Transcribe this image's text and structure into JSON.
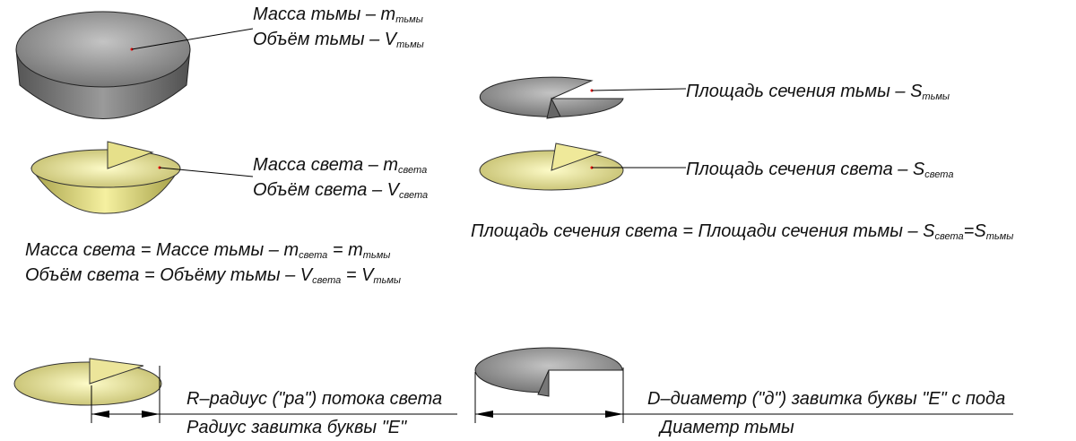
{
  "labels": {
    "dark_mass": [
      {
        "text": "Масса тьмы – m"
      },
      {
        "sub": "тьмы"
      }
    ],
    "dark_volume": [
      {
        "text": "Объём тьмы – V"
      },
      {
        "sub": "тьмы"
      }
    ],
    "light_mass": [
      {
        "text": "Масса света – m"
      },
      {
        "sub": "света"
      }
    ],
    "light_volume": [
      {
        "text": "Объём света – V"
      },
      {
        "sub": "света"
      }
    ],
    "mass_equality": [
      {
        "text": "Масса света = Массе тьмы – m"
      },
      {
        "sub": "света"
      },
      {
        "text": " = m"
      },
      {
        "sub": "тьмы"
      }
    ],
    "volume_equality": [
      {
        "text": "Объём света = Объёму тьмы – V"
      },
      {
        "sub": "света"
      },
      {
        "text": " = V"
      },
      {
        "sub": "тьмы"
      }
    ],
    "dark_section": [
      {
        "text": "Площадь сечения тьмы – S"
      },
      {
        "sub": "тьмы"
      }
    ],
    "light_section": [
      {
        "text": "Площадь сечения света – S"
      },
      {
        "sub": "света"
      }
    ],
    "section_equality": [
      {
        "text": "Площадь сечения света = Площади сечения тьмы – S"
      },
      {
        "sub": "света"
      },
      {
        "text": "=S"
      },
      {
        "sub": "тьмы"
      }
    ],
    "radius_title": [
      {
        "text": "R–радиус (\"ра\") потока света"
      }
    ],
    "radius_note": [
      {
        "text": "Радиус завитка буквы \"Е\""
      }
    ],
    "diameter_title": [
      {
        "text": "D–диаметр (\"д\") завитка буквы \"Е\" с пода"
      }
    ],
    "diameter_note": [
      {
        "text": "Диаметр тьмы"
      }
    ]
  }
}
